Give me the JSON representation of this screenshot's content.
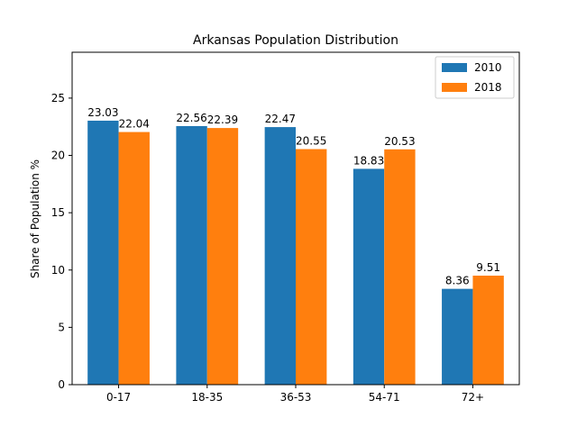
{
  "chart_data": {
    "type": "bar",
    "title": "Arkansas Population Distribution",
    "xlabel": "",
    "ylabel": "Share of Population %",
    "ylim": [
      0,
      29
    ],
    "yticks": [
      0,
      5,
      10,
      15,
      20,
      25
    ],
    "categories": [
      "0-17",
      "18-35",
      "36-53",
      "54-71",
      "72+"
    ],
    "series": [
      {
        "name": "2010",
        "color": "#1f77b4",
        "values": [
          23.03,
          22.56,
          22.47,
          18.83,
          8.36
        ],
        "labels": [
          "23.03",
          "22.56",
          "22.47",
          "18.83",
          "8.36"
        ]
      },
      {
        "name": "2018",
        "color": "#ff7f0e",
        "values": [
          22.04,
          22.39,
          20.55,
          20.53,
          9.51
        ],
        "labels": [
          "22.04",
          "22.39",
          "20.55",
          "20.53",
          "9.51"
        ]
      }
    ],
    "legend": "top-right",
    "grid": false
  }
}
